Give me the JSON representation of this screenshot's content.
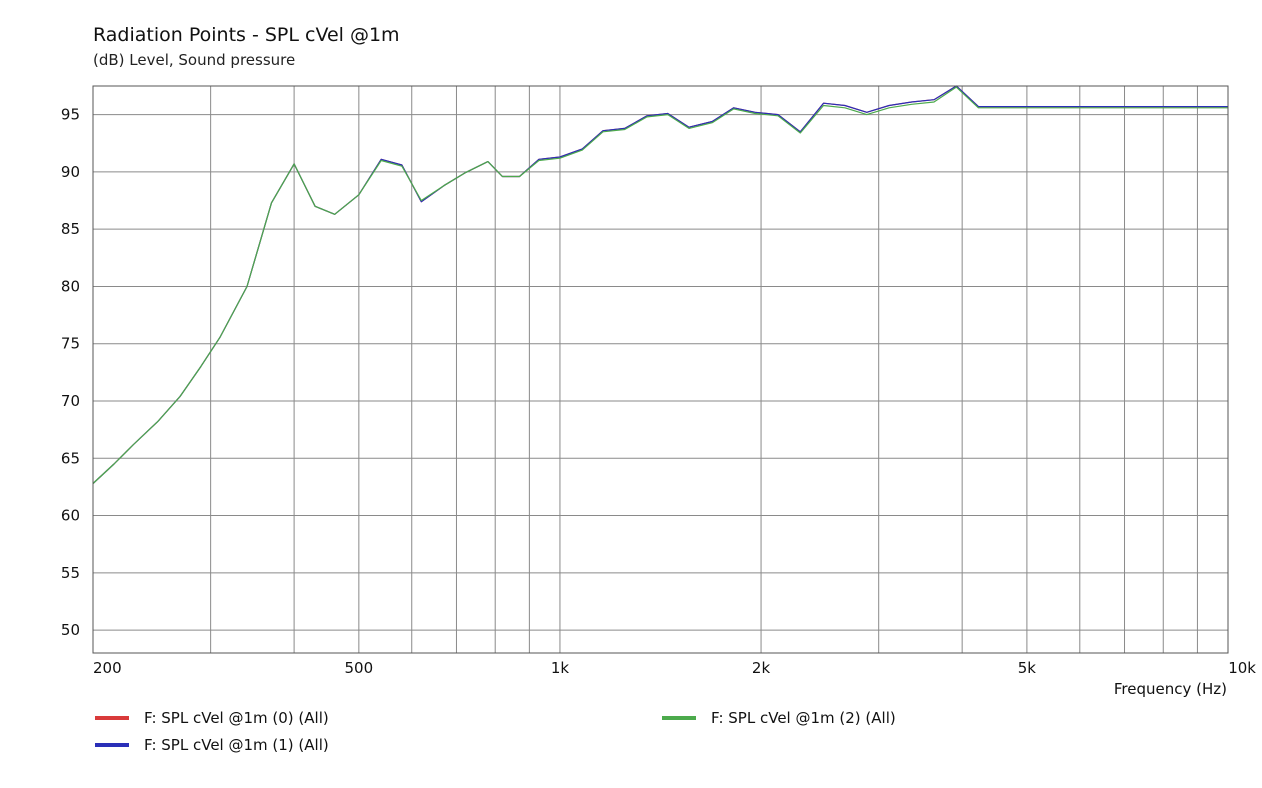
{
  "chart_data": {
    "type": "line",
    "title": "Radiation Points - SPL cVel @1m",
    "ylabel": "(dB)  Level, Sound pressure",
    "xlabel": "Frequency  (Hz)",
    "x_scale": "log",
    "xlim": [
      200,
      10000
    ],
    "ylim": [
      48,
      97.5
    ],
    "x_ticks": [
      {
        "value": 200,
        "label": "200"
      },
      {
        "value": 500,
        "label": "500"
      },
      {
        "value": 1000,
        "label": "1k"
      },
      {
        "value": 2000,
        "label": "2k"
      },
      {
        "value": 5000,
        "label": "5k"
      },
      {
        "value": 10000,
        "label": "10k"
      }
    ],
    "x_gridlines": [
      300,
      400,
      500,
      600,
      700,
      800,
      900,
      1000,
      2000,
      3000,
      4000,
      5000,
      6000,
      7000,
      8000,
      9000
    ],
    "y_ticks": [
      50,
      55,
      60,
      65,
      70,
      75,
      80,
      85,
      90,
      95
    ],
    "grid": true,
    "legend_position": "bottom",
    "series": [
      {
        "name": "F: SPL cVel @1m (0)  (All)",
        "color": "#d93a3a",
        "points": [
          [
            200,
            62.8
          ],
          [
            215,
            64.5
          ],
          [
            230,
            66.2
          ],
          [
            250,
            68.2
          ],
          [
            270,
            70.4
          ],
          [
            290,
            73.0
          ],
          [
            310,
            75.6
          ],
          [
            340,
            80.0
          ],
          [
            370,
            87.3
          ],
          [
            400,
            90.7
          ],
          [
            430,
            87.0
          ],
          [
            460,
            86.3
          ],
          [
            500,
            88.0
          ],
          [
            540,
            91.1
          ],
          [
            580,
            90.6
          ],
          [
            620,
            87.4
          ],
          [
            670,
            88.8
          ],
          [
            720,
            89.9
          ],
          [
            780,
            90.9
          ],
          [
            820,
            89.6
          ],
          [
            870,
            89.6
          ],
          [
            930,
            91.1
          ],
          [
            1000,
            91.3
          ],
          [
            1080,
            92.0
          ],
          [
            1160,
            93.6
          ],
          [
            1250,
            93.8
          ],
          [
            1350,
            94.9
          ],
          [
            1450,
            95.1
          ],
          [
            1560,
            93.9
          ],
          [
            1690,
            94.4
          ],
          [
            1820,
            95.6
          ],
          [
            1960,
            95.2
          ],
          [
            2120,
            95.0
          ],
          [
            2290,
            93.5
          ],
          [
            2480,
            96.0
          ],
          [
            2670,
            95.8
          ],
          [
            2880,
            95.2
          ],
          [
            3110,
            95.8
          ],
          [
            3360,
            96.1
          ],
          [
            3630,
            96.3
          ],
          [
            3920,
            97.5
          ],
          [
            4230,
            95.7
          ],
          [
            10000,
            95.7
          ]
        ]
      },
      {
        "name": "F: SPL cVel @1m (1)  (All)",
        "color": "#2a2fb8",
        "points": [
          [
            200,
            62.8
          ],
          [
            215,
            64.5
          ],
          [
            230,
            66.2
          ],
          [
            250,
            68.2
          ],
          [
            270,
            70.4
          ],
          [
            290,
            73.0
          ],
          [
            310,
            75.6
          ],
          [
            340,
            80.0
          ],
          [
            370,
            87.3
          ],
          [
            400,
            90.7
          ],
          [
            430,
            87.0
          ],
          [
            460,
            86.3
          ],
          [
            500,
            88.0
          ],
          [
            540,
            91.1
          ],
          [
            580,
            90.6
          ],
          [
            620,
            87.4
          ],
          [
            670,
            88.8
          ],
          [
            720,
            89.9
          ],
          [
            780,
            90.9
          ],
          [
            820,
            89.6
          ],
          [
            870,
            89.6
          ],
          [
            930,
            91.1
          ],
          [
            1000,
            91.3
          ],
          [
            1080,
            92.0
          ],
          [
            1160,
            93.6
          ],
          [
            1250,
            93.8
          ],
          [
            1350,
            94.9
          ],
          [
            1450,
            95.1
          ],
          [
            1560,
            93.9
          ],
          [
            1690,
            94.4
          ],
          [
            1820,
            95.6
          ],
          [
            1960,
            95.2
          ],
          [
            2120,
            95.0
          ],
          [
            2290,
            93.5
          ],
          [
            2480,
            96.0
          ],
          [
            2670,
            95.8
          ],
          [
            2880,
            95.2
          ],
          [
            3110,
            95.8
          ],
          [
            3360,
            96.1
          ],
          [
            3630,
            96.3
          ],
          [
            3920,
            97.5
          ],
          [
            4230,
            95.7
          ],
          [
            10000,
            95.7
          ]
        ]
      },
      {
        "name": "F: SPL cVel @1m (2)  (All)",
        "color": "#4caa4c",
        "points": [
          [
            200,
            62.8
          ],
          [
            215,
            64.5
          ],
          [
            230,
            66.2
          ],
          [
            250,
            68.2
          ],
          [
            270,
            70.4
          ],
          [
            290,
            73.0
          ],
          [
            310,
            75.6
          ],
          [
            340,
            80.0
          ],
          [
            370,
            87.3
          ],
          [
            400,
            90.7
          ],
          [
            430,
            87.0
          ],
          [
            460,
            86.3
          ],
          [
            500,
            88.0
          ],
          [
            540,
            91.0
          ],
          [
            580,
            90.5
          ],
          [
            620,
            87.5
          ],
          [
            670,
            88.8
          ],
          [
            720,
            89.9
          ],
          [
            780,
            90.9
          ],
          [
            820,
            89.6
          ],
          [
            870,
            89.6
          ],
          [
            930,
            91.0
          ],
          [
            1000,
            91.2
          ],
          [
            1080,
            91.9
          ],
          [
            1160,
            93.5
          ],
          [
            1250,
            93.7
          ],
          [
            1350,
            94.8
          ],
          [
            1450,
            95.0
          ],
          [
            1560,
            93.8
          ],
          [
            1690,
            94.3
          ],
          [
            1820,
            95.5
          ],
          [
            1960,
            95.1
          ],
          [
            2120,
            94.9
          ],
          [
            2290,
            93.4
          ],
          [
            2480,
            95.8
          ],
          [
            2670,
            95.6
          ],
          [
            2880,
            95.0
          ],
          [
            3110,
            95.6
          ],
          [
            3360,
            95.9
          ],
          [
            3630,
            96.1
          ],
          [
            3920,
            97.4
          ],
          [
            4230,
            95.6
          ],
          [
            10000,
            95.6
          ]
        ]
      }
    ]
  }
}
